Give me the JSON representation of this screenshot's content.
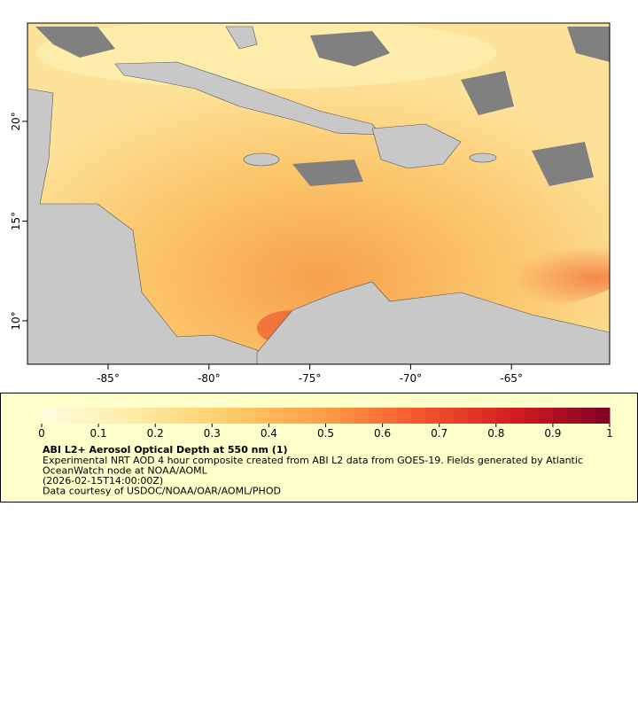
{
  "map": {
    "xlim": [
      -89,
      -60.13
    ],
    "ylim": [
      7.82,
      24.93
    ],
    "xticks": [
      {
        "value": -85,
        "label": "-85°"
      },
      {
        "value": -80,
        "label": "-80°"
      },
      {
        "value": -75,
        "label": "-75°"
      },
      {
        "value": -70,
        "label": "-70°"
      },
      {
        "value": -65,
        "label": "-65°"
      }
    ],
    "yticks": [
      {
        "value": 10,
        "label": "10°"
      },
      {
        "value": 15,
        "label": "15°"
      },
      {
        "value": 20,
        "label": "20°"
      }
    ]
  },
  "colorbar": {
    "lim": [
      0,
      1
    ],
    "ticks": [
      0,
      0.1,
      0.2,
      0.3,
      0.4,
      0.5,
      0.6,
      0.7,
      0.8,
      0.9,
      1
    ],
    "colormap": [
      "#fffde0",
      "#feeba4",
      "#fecb68",
      "#fd9c46",
      "#f4562d",
      "#d41c21",
      "#800026"
    ]
  },
  "legend": {
    "title": "ABI L2+ Aerosol Optical Depth at 550 nm (1)",
    "lines": [
      "Experimental NRT AOD 4 hour composite created from ABI L2 data from GOES-19. Fields generated by Atlantic",
      "OceanWatch node at NOAA/AOML",
      "(2026-02-15T14:00:00Z)",
      "Data courtesy of USDOC/NOAA/OAR/AOML/PHOD"
    ]
  }
}
